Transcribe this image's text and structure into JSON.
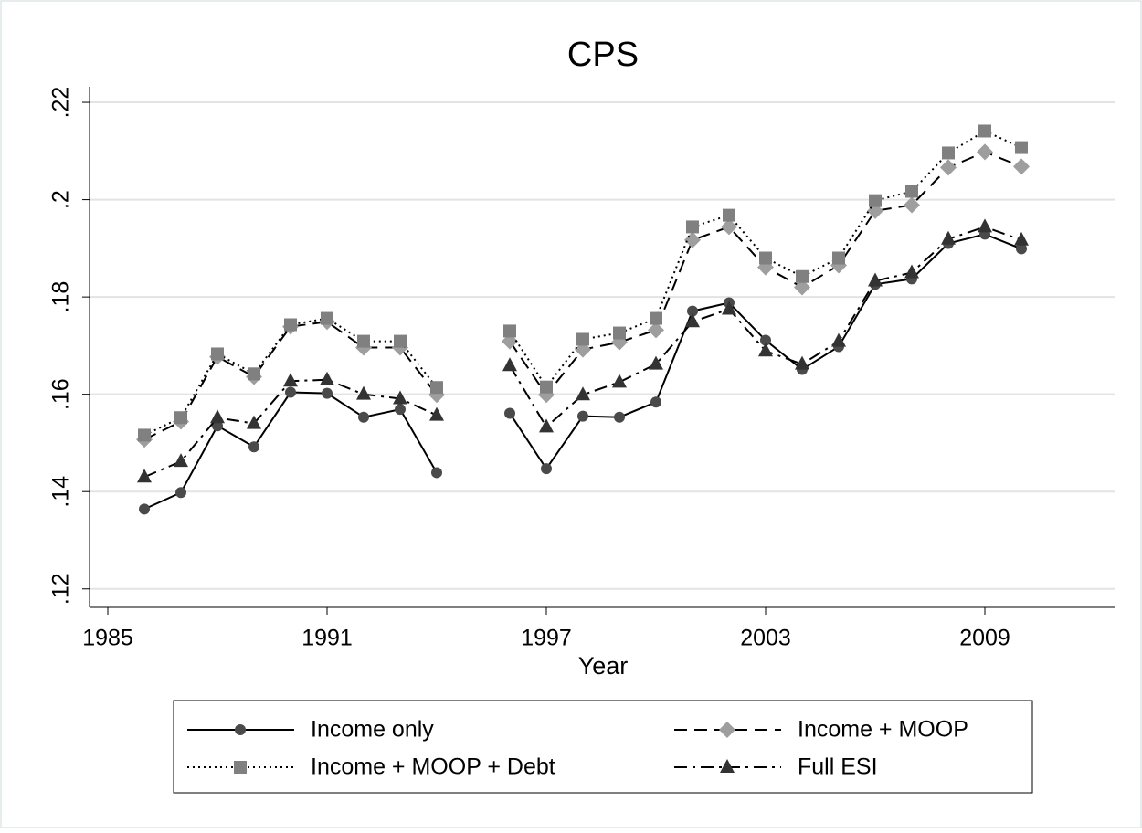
{
  "chart_data": {
    "type": "line",
    "title": "CPS",
    "x_label": "Year",
    "x": [
      1986,
      1987,
      1988,
      1989,
      1990,
      1991,
      1992,
      1993,
      1994,
      1995,
      1996,
      1997,
      1998,
      1999,
      2000,
      2001,
      2002,
      2003,
      2004,
      2005,
      2006,
      2007,
      2008,
      2009,
      2010
    ],
    "xlim": [
      1984.5,
      2012.55
    ],
    "xticks": [
      1985,
      1991,
      1997,
      2003,
      2009
    ],
    "ylim": [
      0.1162,
      0.2232
    ],
    "yticks": [
      {
        "value": 0.12,
        "label": ".12"
      },
      {
        "value": 0.14,
        "label": ".14"
      },
      {
        "value": 0.16,
        "label": ".16"
      },
      {
        "value": 0.18,
        "label": ".18"
      },
      {
        "value": 0.2,
        "label": ".2"
      },
      {
        "value": 0.22,
        "label": ".22"
      }
    ],
    "grid": true,
    "legend_position": "bottom",
    "line_color": "#000000",
    "series": [
      {
        "name": "Income only",
        "color": "#4a4a4a",
        "marker": "circle",
        "dash": "solid",
        "values": [
          0.1364,
          0.1398,
          0.1535,
          0.1492,
          0.1604,
          0.1602,
          0.1553,
          0.1569,
          0.1439,
          null,
          0.1561,
          0.1447,
          0.1555,
          0.1553,
          0.1584,
          0.1771,
          0.1788,
          0.1711,
          0.1651,
          0.1698,
          0.1826,
          0.1837,
          0.191,
          0.1929,
          0.1899
        ]
      },
      {
        "name": "Income + MOOP",
        "color": "#9e9e9e",
        "marker": "diamond",
        "dash": "dash",
        "values": [
          0.1507,
          0.1544,
          0.1677,
          0.1636,
          0.1739,
          0.1749,
          0.1696,
          0.1696,
          0.1599,
          null,
          0.1709,
          0.1599,
          0.1692,
          0.1707,
          0.1732,
          0.1917,
          0.1944,
          0.1861,
          0.182,
          0.1865,
          0.1977,
          0.1989,
          0.2066,
          0.2098,
          0.2068
        ]
      },
      {
        "name": "Income + MOOP + Debt",
        "color": "#808080",
        "marker": "square",
        "dash": "dot",
        "values": [
          0.1516,
          0.1552,
          0.1683,
          0.1642,
          0.1743,
          0.1756,
          0.1709,
          0.1709,
          0.1614,
          null,
          0.173,
          0.1615,
          0.1713,
          0.1726,
          0.1756,
          0.1944,
          0.1968,
          0.188,
          0.1842,
          0.188,
          0.1998,
          0.2017,
          0.2096,
          0.2141,
          0.2107
        ]
      },
      {
        "name": "Full ESI",
        "color": "#333333",
        "marker": "triangle",
        "dash": "dashdot",
        "values": [
          0.143,
          0.1462,
          0.1552,
          0.154,
          0.1627,
          0.163,
          0.16,
          0.1591,
          0.1557,
          null,
          0.1659,
          0.1533,
          0.1599,
          0.1625,
          0.1662,
          0.1749,
          0.1775,
          0.1689,
          0.1662,
          0.1709,
          0.1833,
          0.185,
          0.1919,
          0.1944,
          0.1917
        ]
      }
    ]
  }
}
